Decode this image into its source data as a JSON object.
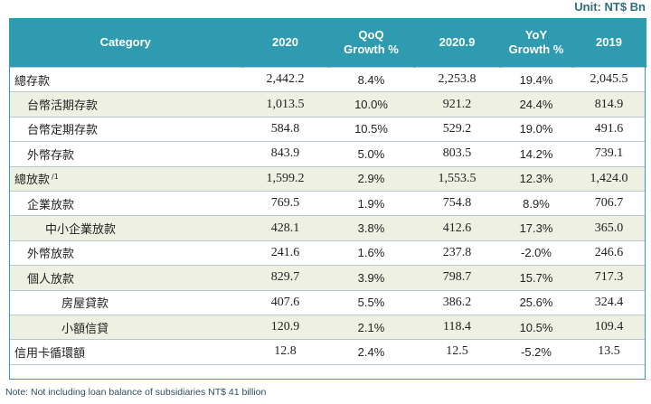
{
  "unit_label": "Unit: NT$ Bn",
  "headers": {
    "category": "Category",
    "y2020": "2020",
    "qoq_line1": "QoQ",
    "qoq_line2": "Growth %",
    "y2020_9": "2020.9",
    "yoy_line1": "YoY",
    "yoy_line2": "Growth %",
    "y2019": "2019"
  },
  "rows": [
    {
      "category": "總存款",
      "note": "",
      "y2020": "2,442.2",
      "qoq": "8.4%",
      "y2020_9": "2,253.8",
      "yoy": "19.4%",
      "y2019": "2,045.5"
    },
    {
      "category": "台幣活期存款",
      "note": "",
      "y2020": "1,013.5",
      "qoq": "10.0%",
      "y2020_9": "921.2",
      "yoy": "24.4%",
      "y2019": "814.9"
    },
    {
      "category": "台幣定期存款",
      "note": "",
      "y2020": "584.8",
      "qoq": "10.5%",
      "y2020_9": "529.2",
      "yoy": "19.0%",
      "y2019": "491.6"
    },
    {
      "category": "外幣存款",
      "note": "",
      "y2020": "843.9",
      "qoq": "5.0%",
      "y2020_9": "803.5",
      "yoy": "14.2%",
      "y2019": "739.1"
    },
    {
      "category": "總放款",
      "note": "/1",
      "y2020": "1,599.2",
      "qoq": "2.9%",
      "y2020_9": "1,553.5",
      "yoy": "12.3%",
      "y2019": "1,424.0"
    },
    {
      "category": "企業放款",
      "note": "",
      "y2020": "769.5",
      "qoq": "1.9%",
      "y2020_9": "754.8",
      "yoy": "8.9%",
      "y2019": "706.7"
    },
    {
      "category": "中小企業放款",
      "note": "",
      "y2020": "428.1",
      "qoq": "3.8%",
      "y2020_9": "412.6",
      "yoy": "17.3%",
      "y2019": "365.0"
    },
    {
      "category": "外幣放款",
      "note": "",
      "y2020": "241.6",
      "qoq": "1.6%",
      "y2020_9": "237.8",
      "yoy": "-2.0%",
      "y2019": "246.6"
    },
    {
      "category": "個人放款",
      "note": "",
      "y2020": "829.7",
      "qoq": "3.9%",
      "y2020_9": "798.7",
      "yoy": "15.7%",
      "y2019": "717.3"
    },
    {
      "category": "房屋貸款",
      "note": "",
      "y2020": "407.6",
      "qoq": "5.5%",
      "y2020_9": "386.2",
      "yoy": "25.6%",
      "y2019": "324.4"
    },
    {
      "category": "小額信貸",
      "note": "",
      "y2020": "120.9",
      "qoq": "2.1%",
      "y2020_9": "118.4",
      "yoy": "10.5%",
      "y2019": "109.4"
    },
    {
      "category": "信用卡循環額",
      "note": "",
      "y2020": "12.8",
      "qoq": "2.4%",
      "y2020_9": "12.5",
      "yoy": "-5.2%",
      "y2019": "13.5"
    }
  ],
  "footnote": "Note: Not including loan balance of subsidiaries NT$ 41 billion"
}
